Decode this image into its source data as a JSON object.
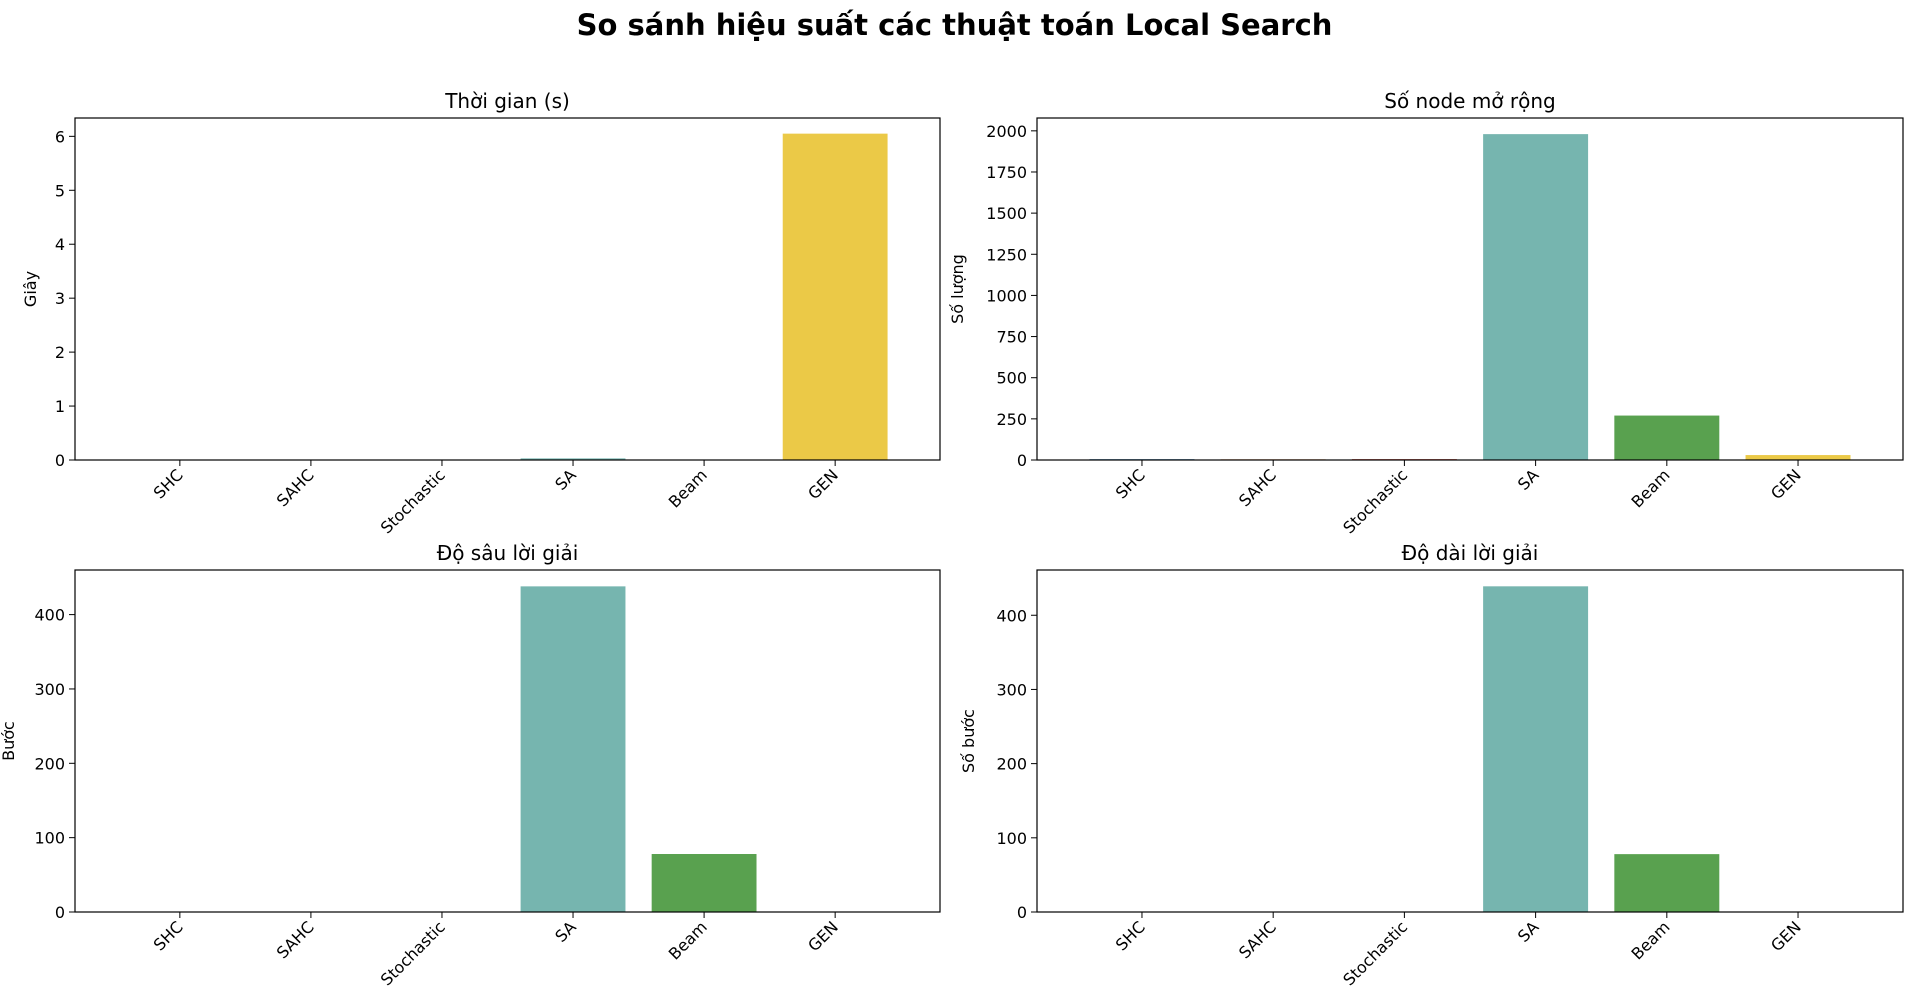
{
  "suptitle": "So sánh hiệu suất các thuật toán Local Search",
  "colors": [
    "#4682b4",
    "#e07b39",
    "#c0392b",
    "#76b5af",
    "#59a14f",
    "#ebc947"
  ],
  "chart_data": [
    {
      "type": "bar",
      "title": "Thời gian (s)",
      "ylabel": "Giây",
      "xlabel": "",
      "categories": [
        "SHC",
        "SAHC",
        "Stochastic",
        "SA",
        "Beam",
        "GEN"
      ],
      "values": [
        0.001,
        0.001,
        0.001,
        0.03,
        0.002,
        6.05
      ],
      "ylim": [
        0,
        6.34
      ],
      "yticks": [
        0,
        1,
        2,
        3,
        4,
        5,
        6
      ],
      "grid": false
    },
    {
      "type": "bar",
      "title": "Số node mở rộng",
      "ylabel": "Số lượng",
      "xlabel": "",
      "categories": [
        "SHC",
        "SAHC",
        "Stochastic",
        "SA",
        "Beam",
        "GEN"
      ],
      "values": [
        5,
        4,
        5,
        1980,
        270,
        30
      ],
      "ylim": [
        0,
        2078
      ],
      "yticks": [
        0,
        250,
        500,
        750,
        1000,
        1250,
        1500,
        1750,
        2000
      ],
      "grid": false
    },
    {
      "type": "bar",
      "title": "Độ sâu lời giải",
      "ylabel": "Bước",
      "xlabel": "",
      "categories": [
        "SHC",
        "SAHC",
        "Stochastic",
        "SA",
        "Beam",
        "GEN"
      ],
      "values": [
        0,
        0,
        0,
        438,
        78,
        0
      ],
      "ylim": [
        0,
        460
      ],
      "yticks": [
        0,
        100,
        200,
        300,
        400
      ],
      "grid": false
    },
    {
      "type": "bar",
      "title": "Độ dài lời giải",
      "ylabel": "Số bước",
      "xlabel": "",
      "categories": [
        "SHC",
        "SAHC",
        "Stochastic",
        "SA",
        "Beam",
        "GEN"
      ],
      "values": [
        0,
        0,
        0,
        439,
        78,
        0
      ],
      "ylim": [
        0,
        461
      ],
      "yticks": [
        0,
        100,
        200,
        300,
        400
      ],
      "grid": false
    }
  ]
}
